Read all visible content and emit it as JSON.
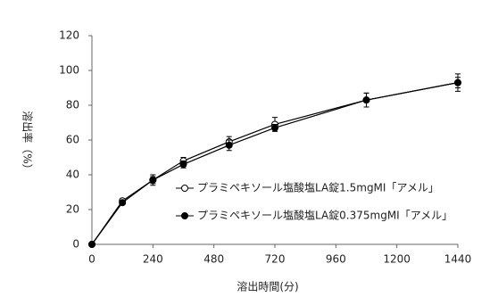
{
  "chart_data": {
    "type": "line",
    "x_label": "溶出時間(分)",
    "y_label": "溶出率（%）",
    "x": [
      0,
      120,
      240,
      360,
      540,
      720,
      1080,
      1440
    ],
    "series": [
      {
        "name": "プラミペキソール塩酸塩LA錠1.5mgMI「アメル」",
        "color": "#000000",
        "marker": "open",
        "values": [
          0,
          25,
          37,
          48,
          59,
          69,
          83,
          93
        ],
        "errors": [
          0,
          1,
          2,
          2,
          3,
          4,
          4,
          5
        ]
      },
      {
        "name": "プラミペキソール塩酸塩LA錠0.375mgMI「アメル」",
        "color": "#000000",
        "marker": "filled",
        "values": [
          0,
          24,
          37,
          46,
          57,
          67,
          83,
          93
        ],
        "errors": [
          0,
          1,
          3,
          2,
          3,
          2,
          4,
          3
        ]
      }
    ],
    "xlim": [
      0,
      1440
    ],
    "xticks": [
      0,
      240,
      480,
      720,
      960,
      1200,
      1440
    ],
    "ylim": [
      0,
      120
    ],
    "yticks": [
      0,
      20,
      40,
      60,
      80,
      100,
      120
    ]
  }
}
